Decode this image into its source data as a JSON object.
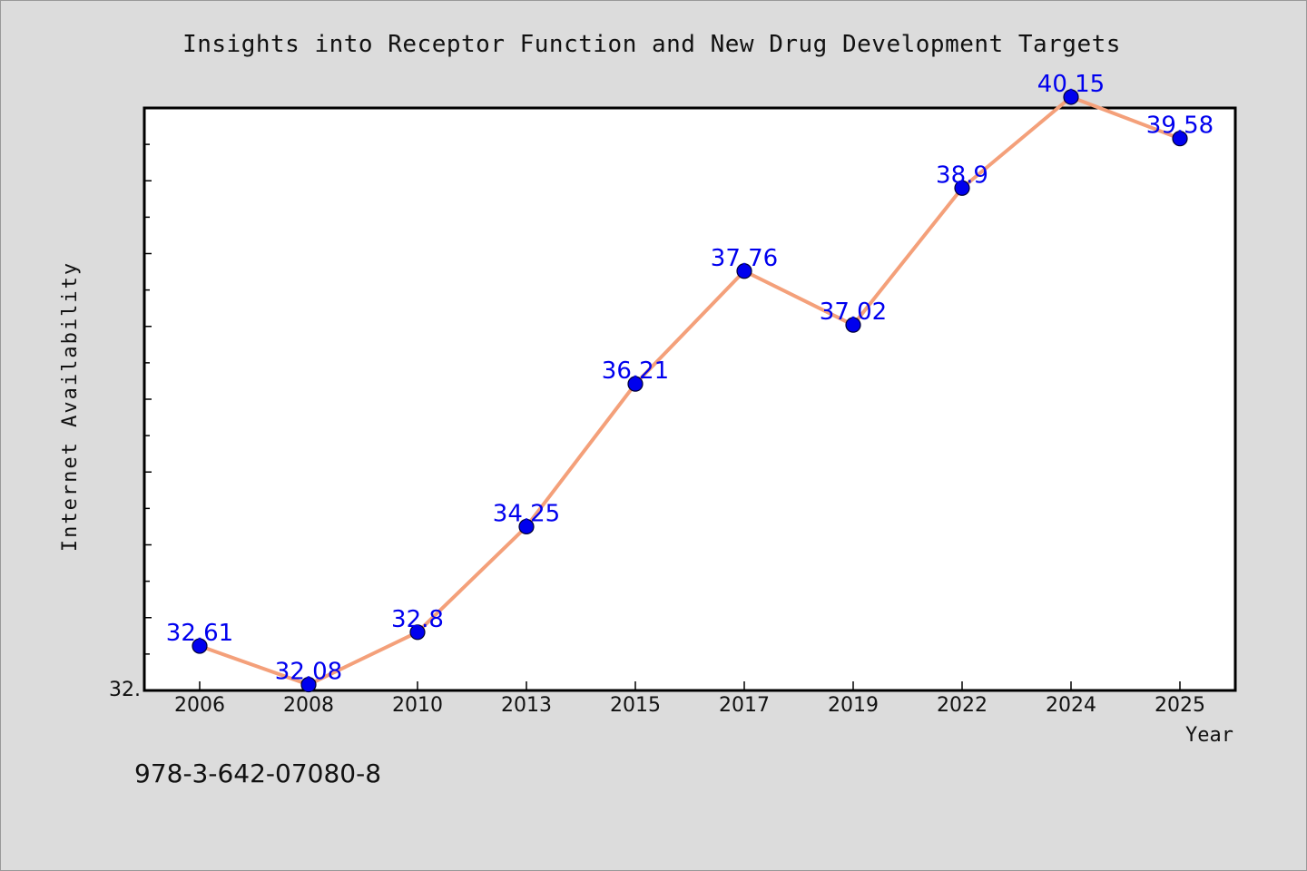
{
  "chart_data": {
    "type": "line",
    "title": "Insights into Receptor Function and New Drug Development Targets",
    "xlabel": "Year",
    "ylabel": "Internet Availability",
    "categories": [
      "2006",
      "2008",
      "2010",
      "2013",
      "2015",
      "2017",
      "2019",
      "2022",
      "2024",
      "2025"
    ],
    "values": [
      32.61,
      32.08,
      32.8,
      34.25,
      36.21,
      37.76,
      37.02,
      38.9,
      40.15,
      39.58
    ],
    "data_labels": [
      "32.61",
      "32.08",
      "32.8",
      "34.25",
      "36.21",
      "37.76",
      "37.02",
      "38.9",
      "40.15",
      "39.58"
    ],
    "y_tick_label": "32.",
    "ylim": [
      32.0,
      40.0
    ],
    "grid": false,
    "line_color": "#f4a07a",
    "marker_color": "#0000ee",
    "label_color": "#0000ee"
  },
  "footer": {
    "id_text": "978-3-642-07080-8"
  }
}
